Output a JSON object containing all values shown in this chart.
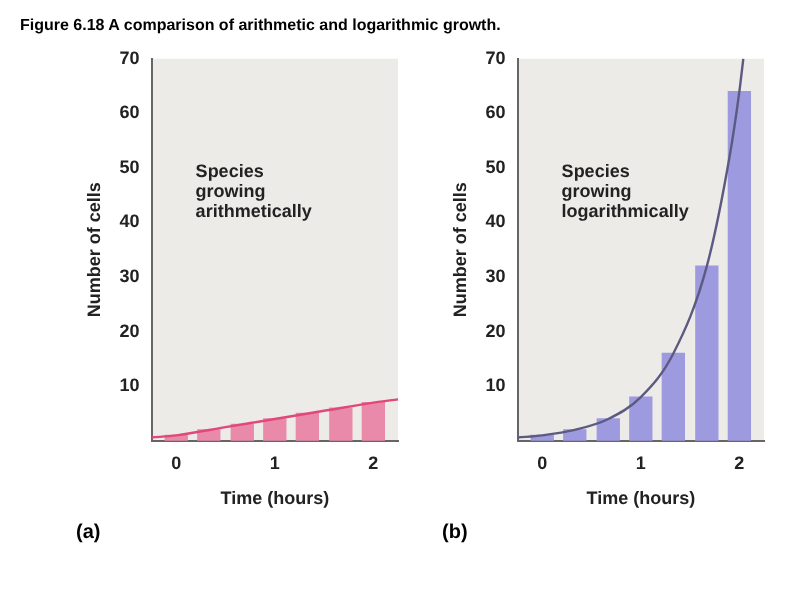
{
  "chart_data": [
    {
      "type": "bar",
      "title": "Figure 6.18  A comparison of arithmetic and logarithmic growth.",
      "xlabel": "Time (hours)",
      "ylabel": "Number of cells",
      "annotations": [
        "Species growing arithmetically",
        "(a)"
      ],
      "x": [
        0,
        0.33,
        0.67,
        1,
        1.33,
        1.67,
        2
      ],
      "xlim": [
        -0.25,
        2.25
      ],
      "xticks": [
        0,
        1,
        2
      ],
      "ylim": [
        0,
        70
      ],
      "yticks": [
        10,
        20,
        30,
        40,
        50,
        60,
        70
      ],
      "grid": false,
      "legend": false,
      "series": [
        {
          "color": "#e98aaa",
          "values": [
            1,
            2,
            3,
            4,
            5,
            6,
            7
          ]
        },
        {
          "type": "line",
          "color": "#e0487a",
          "x": [
            -0.25,
            0,
            0.5,
            1,
            1.5,
            2,
            2.25
          ],
          "values": [
            0.6,
            1,
            2.5,
            4,
            5.5,
            7,
            7.6
          ]
        }
      ]
    },
    {
      "type": "bar",
      "xlabel": "Time (hours)",
      "ylabel": "Number of cells",
      "annotations": [
        "Species growing logarithmically",
        "(b)"
      ],
      "x": [
        0,
        0.33,
        0.67,
        1,
        1.33,
        1.67,
        2
      ],
      "xlim": [
        -0.25,
        2.25
      ],
      "xticks": [
        0,
        1,
        2
      ],
      "ylim": [
        0,
        70
      ],
      "yticks": [
        10,
        20,
        30,
        40,
        50,
        60,
        70
      ],
      "grid": false,
      "legend": false,
      "series": [
        {
          "color": "#9e9ae0",
          "values": [
            1,
            2,
            4,
            8,
            16,
            32,
            64
          ]
        },
        {
          "type": "line",
          "color": "#5c5a80",
          "x": [
            -0.25,
            0,
            0.33,
            0.67,
            1,
            1.33,
            1.67,
            1.9,
            2,
            2.04
          ],
          "values": [
            0.6,
            1,
            2,
            4,
            8,
            16,
            32,
            52,
            64,
            70
          ]
        }
      ]
    }
  ]
}
